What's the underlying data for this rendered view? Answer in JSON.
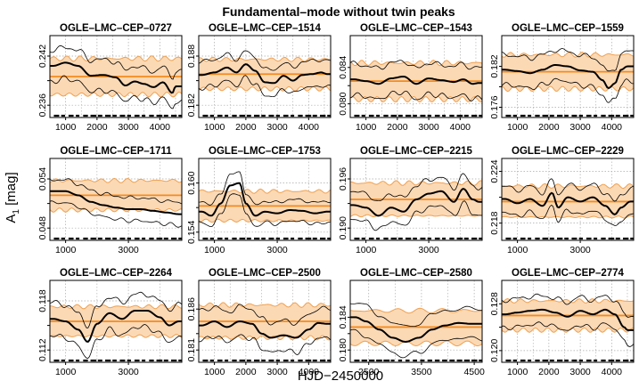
{
  "figure": {
    "title": "Fundamental–mode without twin peaks",
    "xlabel": "HJD−2450000",
    "ylabel_main": "A",
    "ylabel_sub": "1",
    "ylabel_unit": " [mag]"
  },
  "colors": {
    "band_fill": "#fbd9b5",
    "band_edge": "#f0a050",
    "mean_line": "#f58a1f",
    "fit_line": "#000000",
    "envelope": "#000000",
    "grid": "#a9a9a9",
    "frame": "#000000"
  },
  "chart_data": [
    {
      "type": "line",
      "title": "OGLE–LMC–CEP–0727",
      "xlim": [
        500,
        4700
      ],
      "xticks": [
        1000,
        2000,
        3000,
        4000
      ],
      "ylim": [
        0.2345,
        0.2445
      ],
      "yticks": [
        0.236,
        0.239,
        0.242
      ],
      "yticklabels": [
        "0.236",
        "",
        "0.242"
      ],
      "mean": 0.2395,
      "band": 0.0022,
      "fit": [
        [
          600,
          0.2408
        ],
        [
          1000,
          0.2412
        ],
        [
          1400,
          0.2408
        ],
        [
          1800,
          0.2396
        ],
        [
          2200,
          0.2397
        ],
        [
          2600,
          0.2394
        ],
        [
          2900,
          0.2384
        ],
        [
          3200,
          0.2389
        ],
        [
          3500,
          0.2386
        ],
        [
          3800,
          0.2382
        ],
        [
          4100,
          0.2388
        ],
        [
          4400,
          0.2375
        ],
        [
          4500,
          0.2383
        ]
      ],
      "envelope_width": 0.0019
    },
    {
      "type": "line",
      "title": "OGLE–LMC–CEP–1514",
      "xlim": [
        500,
        4700
      ],
      "xticks": [
        1000,
        2000,
        3000,
        4000
      ],
      "ylim": [
        0.1805,
        0.1905
      ],
      "yticks": [
        0.182,
        0.185,
        0.188
      ],
      "yticklabels": [
        "0.182",
        "",
        "0.188"
      ],
      "mean": 0.1858,
      "band": 0.0018,
      "fit": [
        [
          600,
          0.1857
        ],
        [
          1000,
          0.186
        ],
        [
          1400,
          0.1866
        ],
        [
          1700,
          0.186
        ],
        [
          2000,
          0.187
        ],
        [
          2300,
          0.1862
        ],
        [
          2600,
          0.1848
        ],
        [
          2900,
          0.1847
        ],
        [
          3200,
          0.1856
        ],
        [
          3500,
          0.185
        ],
        [
          3800,
          0.1857
        ],
        [
          4100,
          0.1858
        ],
        [
          4400,
          0.186
        ],
        [
          4600,
          0.1858
        ]
      ],
      "envelope_width": 0.0016
    },
    {
      "type": "line",
      "title": "OGLE–LMC–CEP–1543",
      "xlim": [
        500,
        4700
      ],
      "xticks": [
        1000,
        2000,
        3000,
        4000
      ],
      "ylim": [
        0.0785,
        0.0875
      ],
      "yticks": [
        0.08,
        0.082,
        0.084
      ],
      "yticklabels": [
        "0.080",
        "",
        "0.084"
      ],
      "mean": 0.0825,
      "band": 0.002,
      "fit": [
        [
          600,
          0.0827
        ],
        [
          1000,
          0.0825
        ],
        [
          1400,
          0.0822
        ],
        [
          1800,
          0.0828
        ],
        [
          2200,
          0.083
        ],
        [
          2600,
          0.0822
        ],
        [
          3000,
          0.0828
        ],
        [
          3400,
          0.0826
        ],
        [
          3800,
          0.0824
        ],
        [
          4100,
          0.0827
        ],
        [
          4400,
          0.0822
        ],
        [
          4600,
          0.0823
        ]
      ],
      "envelope_width": 0.0017
    },
    {
      "type": "line",
      "title": "OGLE–LMC–CEP–1559",
      "xlim": [
        500,
        4700
      ],
      "xticks": [
        1000,
        2000,
        3000,
        4000
      ],
      "ylim": [
        0.1745,
        0.1865
      ],
      "yticks": [
        0.176,
        0.179,
        0.182
      ],
      "yticklabels": [
        "0.176",
        "",
        "0.182"
      ],
      "mean": 0.1812,
      "band": 0.0025,
      "fit": [
        [
          600,
          0.1815
        ],
        [
          1000,
          0.1813
        ],
        [
          1400,
          0.181
        ],
        [
          1800,
          0.1815
        ],
        [
          2200,
          0.1822
        ],
        [
          2600,
          0.182
        ],
        [
          3000,
          0.1814
        ],
        [
          3400,
          0.1812
        ],
        [
          3700,
          0.18
        ],
        [
          3900,
          0.1788
        ],
        [
          4100,
          0.1795
        ],
        [
          4300,
          0.1815
        ],
        [
          4500,
          0.182
        ]
      ],
      "envelope_width": 0.0022
    },
    {
      "type": "line",
      "title": "OGLE–LMC–CEP–1711",
      "xlim": [
        500,
        4700
      ],
      "xticks": [
        1000,
        3000
      ],
      "ylim": [
        0.0465,
        0.0565
      ],
      "yticks": [
        0.048,
        0.051,
        0.054
      ],
      "yticklabels": [
        "0.048",
        "",
        "0.054"
      ],
      "mean": 0.052,
      "band": 0.0018,
      "fit": [
        [
          600,
          0.0525
        ],
        [
          1000,
          0.0525
        ],
        [
          1400,
          0.052
        ],
        [
          1800,
          0.0512
        ],
        [
          2200,
          0.0508
        ],
        [
          2600,
          0.0505
        ],
        [
          3000,
          0.0503
        ],
        [
          3400,
          0.0503
        ],
        [
          3800,
          0.0501
        ],
        [
          4200,
          0.0499
        ],
        [
          4600,
          0.0497
        ]
      ],
      "envelope_width": 0.0014
    },
    {
      "type": "line",
      "title": "OGLE–LMC–CEP–1753",
      "xlim": [
        500,
        4700
      ],
      "xticks": [
        1000,
        3000
      ],
      "ylim": [
        0.153,
        0.163
      ],
      "yticks": [
        0.154,
        0.157,
        0.16
      ],
      "yticklabels": [
        "0.154",
        "",
        "0.160"
      ],
      "mean": 0.1572,
      "band": 0.0018,
      "fit": [
        [
          600,
          0.1565
        ],
        [
          900,
          0.156
        ],
        [
          1200,
          0.1575
        ],
        [
          1500,
          0.1597
        ],
        [
          1800,
          0.16
        ],
        [
          2000,
          0.1575
        ],
        [
          2300,
          0.156
        ],
        [
          2600,
          0.1565
        ],
        [
          3000,
          0.1563
        ],
        [
          3400,
          0.1567
        ],
        [
          3800,
          0.1566
        ],
        [
          4200,
          0.1563
        ],
        [
          4600,
          0.1565
        ]
      ],
      "envelope_width": 0.0013
    },
    {
      "type": "line",
      "title": "OGLE–LMC–CEP–2215",
      "xlim": [
        500,
        4700
      ],
      "xticks": [
        1000,
        3000
      ],
      "ylim": [
        0.1885,
        0.1985
      ],
      "yticks": [
        0.19,
        0.193,
        0.196
      ],
      "yticklabels": [
        "0.190",
        "",
        "0.196"
      ],
      "mean": 0.1935,
      "band": 0.002,
      "fit": [
        [
          600,
          0.1928
        ],
        [
          1000,
          0.1925
        ],
        [
          1400,
          0.1915
        ],
        [
          1800,
          0.1925
        ],
        [
          2200,
          0.192
        ],
        [
          2600,
          0.1935
        ],
        [
          3000,
          0.1942
        ],
        [
          3400,
          0.1945
        ],
        [
          3800,
          0.1932
        ],
        [
          4100,
          0.1948
        ],
        [
          4400,
          0.1935
        ],
        [
          4600,
          0.1932
        ]
      ],
      "envelope_width": 0.0017
    },
    {
      "type": "line",
      "title": "OGLE–LMC–CEP–2229",
      "xlim": [
        500,
        4700
      ],
      "xticks": [
        1000,
        3000
      ],
      "ylim": [
        0.216,
        0.2255
      ],
      "yticks": [
        0.218,
        0.221,
        0.224
      ],
      "yticklabels": [
        "0.218",
        "",
        "0.224"
      ],
      "mean": 0.2205,
      "band": 0.0018,
      "fit": [
        [
          600,
          0.2208
        ],
        [
          1000,
          0.2203
        ],
        [
          1400,
          0.2208
        ],
        [
          1800,
          0.22
        ],
        [
          2100,
          0.2215
        ],
        [
          2300,
          0.2198
        ],
        [
          2600,
          0.221
        ],
        [
          3000,
          0.2205
        ],
        [
          3400,
          0.221
        ],
        [
          3800,
          0.22
        ],
        [
          4100,
          0.219
        ],
        [
          4300,
          0.2198
        ],
        [
          4600,
          0.2205
        ]
      ],
      "envelope_width": 0.0015
    },
    {
      "type": "line",
      "title": "OGLE–LMC–CEP–2264",
      "xlim": [
        500,
        4700
      ],
      "xticks": [
        1000,
        3000
      ],
      "ylim": [
        0.1105,
        0.1205
      ],
      "yticks": [
        0.112,
        0.115,
        0.118
      ],
      "yticklabels": [
        "0.112",
        "",
        "0.118"
      ],
      "mean": 0.1155,
      "band": 0.0018,
      "fit": [
        [
          600,
          0.1158
        ],
        [
          1000,
          0.1155
        ],
        [
          1400,
          0.1145
        ],
        [
          1700,
          0.113
        ],
        [
          2000,
          0.1152
        ],
        [
          2400,
          0.1165
        ],
        [
          2800,
          0.1158
        ],
        [
          3200,
          0.1168
        ],
        [
          3600,
          0.1168
        ],
        [
          4000,
          0.116
        ],
        [
          4300,
          0.115
        ],
        [
          4600,
          0.1155
        ]
      ],
      "envelope_width": 0.002
    },
    {
      "type": "line",
      "title": "OGLE–LMC–CEP–2500",
      "xlim": [
        500,
        4700
      ],
      "xticks": [
        1000,
        2000,
        3000,
        4000
      ],
      "ylim": [
        0.1795,
        0.1895
      ],
      "yticks": [
        0.181,
        0.183,
        0.186
      ],
      "yticklabels": [
        "0.181",
        "",
        "0.186"
      ],
      "mean": 0.1845,
      "band": 0.002,
      "fit": [
        [
          600,
          0.184
        ],
        [
          1000,
          0.1845
        ],
        [
          1400,
          0.1838
        ],
        [
          1800,
          0.1845
        ],
        [
          2200,
          0.1842
        ],
        [
          2500,
          0.183
        ],
        [
          2800,
          0.1825
        ],
        [
          3200,
          0.1828
        ],
        [
          3600,
          0.1825
        ],
        [
          4000,
          0.1835
        ],
        [
          4300,
          0.1843
        ],
        [
          4600,
          0.1842
        ]
      ],
      "envelope_width": 0.0018
    },
    {
      "type": "line",
      "title": "OGLE–LMC–CEP–2580",
      "xlim": [
        2150,
        4650
      ],
      "xticks": [
        2500,
        3500,
        4500
      ],
      "ylim": [
        0.1785,
        0.1885
      ],
      "yticks": [
        0.18,
        0.182,
        0.184
      ],
      "yticklabels": [
        "0.180",
        "",
        "0.184"
      ],
      "mean": 0.1828,
      "band": 0.002,
      "fit": [
        [
          2250,
          0.184
        ],
        [
          2450,
          0.1835
        ],
        [
          2700,
          0.1825
        ],
        [
          2950,
          0.1815
        ],
        [
          3200,
          0.181
        ],
        [
          3450,
          0.1815
        ],
        [
          3700,
          0.1825
        ],
        [
          3950,
          0.183
        ],
        [
          4200,
          0.1833
        ],
        [
          4450,
          0.1832
        ],
        [
          4600,
          0.1832
        ]
      ],
      "envelope_width": 0.0018
    },
    {
      "type": "line",
      "title": "OGLE–LMC–CEP–2774",
      "xlim": [
        500,
        4700
      ],
      "xticks": [
        1000,
        2000,
        3000,
        4000
      ],
      "ylim": [
        0.118,
        0.132
      ],
      "yticks": [
        0.12,
        0.124,
        0.128
      ],
      "yticklabels": [
        "0.120",
        "",
        "0.128"
      ],
      "mean": 0.126,
      "band": 0.0025,
      "fit": [
        [
          600,
          0.1262
        ],
        [
          1000,
          0.1265
        ],
        [
          1400,
          0.1268
        ],
        [
          1800,
          0.127
        ],
        [
          2200,
          0.1265
        ],
        [
          2600,
          0.1258
        ],
        [
          3000,
          0.1268
        ],
        [
          3400,
          0.1262
        ],
        [
          3800,
          0.127
        ],
        [
          4100,
          0.1262
        ],
        [
          4400,
          0.124
        ],
        [
          4500,
          0.1235
        ]
      ],
      "envelope_width": 0.0024
    }
  ]
}
